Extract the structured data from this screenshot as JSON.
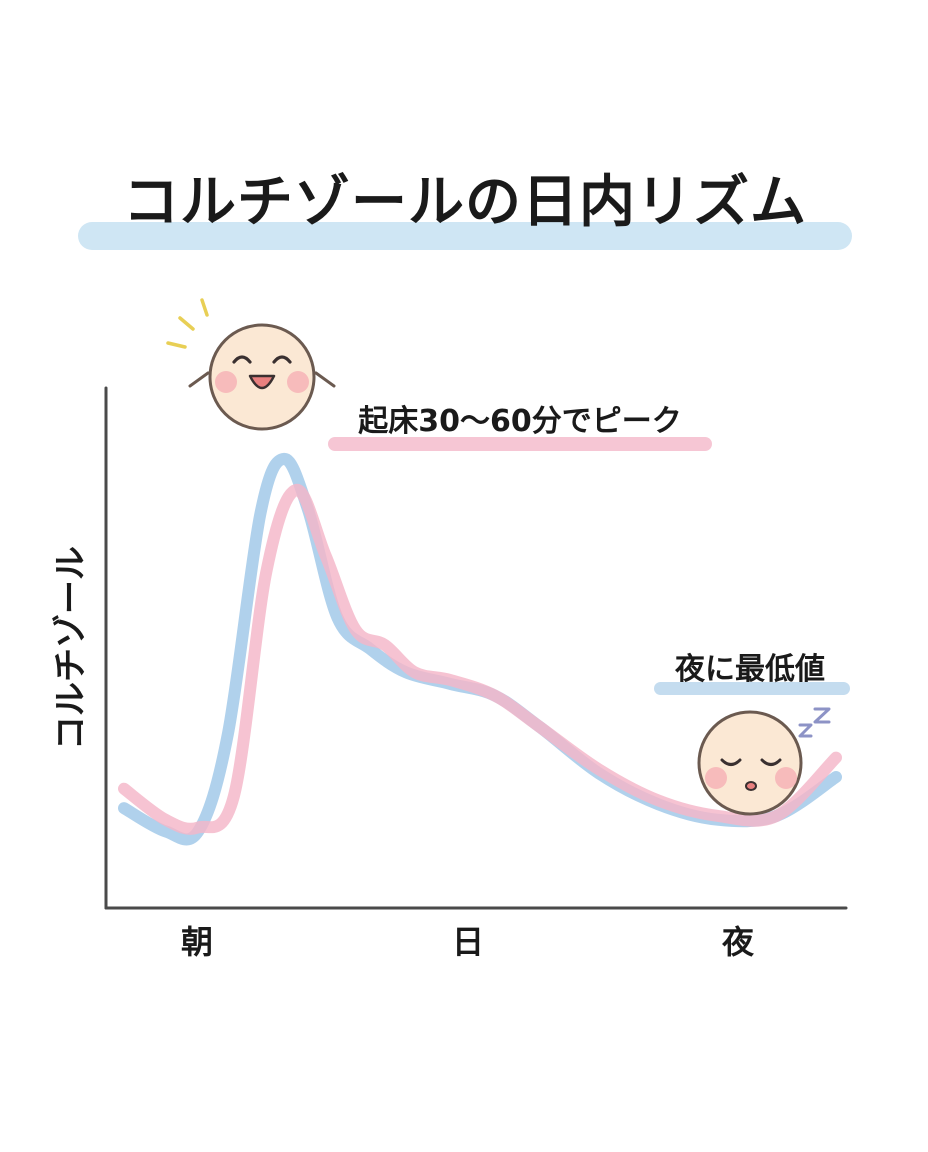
{
  "chart_data": {
    "type": "line",
    "title": "コルチゾールの日内リズム",
    "ylabel": "コルチゾール",
    "xlabel": "",
    "categories": [
      "朝",
      "日",
      "夜"
    ],
    "x_range": [
      0,
      24
    ],
    "ylim": [
      0,
      100
    ],
    "grid": false,
    "series": [
      {
        "x": [
          0,
          1.4,
          2.5,
          3.5,
          4.6,
          5.4,
          6.2,
          7.2,
          8.3,
          9.5,
          11,
          12.5,
          14,
          16,
          18,
          20,
          22,
          24
        ],
        "values": [
          9,
          3,
          3,
          28,
          85,
          99,
          86,
          58,
          50,
          44,
          41,
          38,
          30,
          18,
          10,
          6,
          7,
          17
        ]
      },
      {
        "x": [
          0,
          1.4,
          2.5,
          3.7,
          4.8,
          5.8,
          6.8,
          7.8,
          8.8,
          9.8,
          11,
          12.5,
          14,
          16,
          18,
          20,
          22,
          24
        ],
        "values": [
          14,
          6,
          4,
          12,
          70,
          91,
          74,
          55,
          51,
          44,
          42,
          38,
          30,
          19,
          11,
          7,
          7,
          22
        ]
      }
    ],
    "annotations": [
      {
        "text": "起床30〜60分でピーク"
      },
      {
        "text": "夜に最低値"
      }
    ],
    "colors": {
      "blue_line": "#a9cdea",
      "pink_line": "#f4b6c8",
      "title_highlight": "#cfe6f4",
      "peak_highlight": "#f6c6d4",
      "night_highlight": "#c4dcef",
      "axis": "#4a4a4a"
    }
  },
  "decorations": {
    "happy_face": "happy-face-icon",
    "sleep_face": "sleeping-face-icon",
    "sleep_z": "zz-icon",
    "sparkles": "sparkle-icon"
  }
}
